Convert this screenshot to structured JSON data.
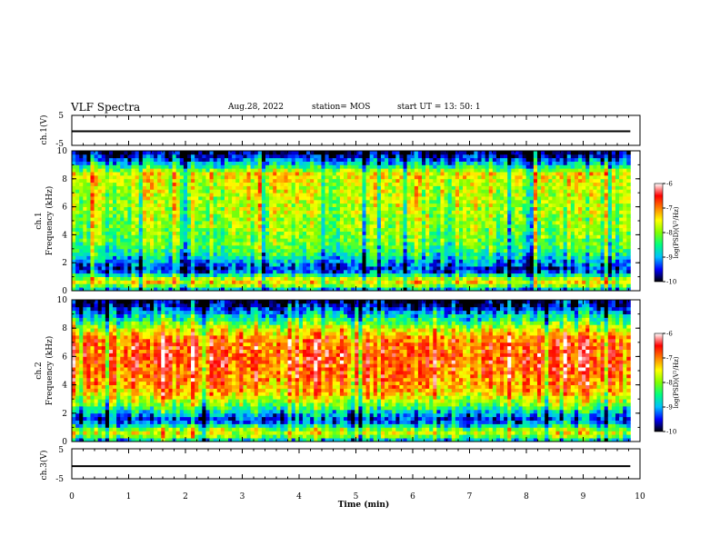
{
  "header": {
    "title": "VLF Spectra",
    "date": "Aug.28, 2022",
    "station": "station= MOS",
    "start_ut": "start  UT =   13: 50: 1"
  },
  "chart_data": {
    "type": "heatmap",
    "x": {
      "label": "Time  (min)",
      "range": [
        0,
        10
      ],
      "ticks": [
        0,
        1,
        2,
        3,
        4,
        5,
        6,
        7,
        8,
        9,
        10
      ],
      "data_end": 9.83
    },
    "panels": [
      {
        "id": "ch1-waveform",
        "type": "line",
        "ylabel": "ch.1(V)",
        "yrange": [
          -5,
          5
        ],
        "yticks": [
          5,
          -5
        ],
        "level": -0.3
      },
      {
        "id": "ch1-spectrogram",
        "type": "heatmap",
        "ylabel": "ch.1\nFrequency (kHz)",
        "ylabel_line1": "ch.1",
        "ylabel_line2": "Frequency (kHz)",
        "yrange": [
          0,
          10
        ],
        "yticks": [
          0,
          2,
          4,
          6,
          8,
          10
        ],
        "band_profile": [
          {
            "f": 0.0,
            "v": -9.3
          },
          {
            "f": 0.3,
            "v": -8.2
          },
          {
            "f": 0.7,
            "v": -7.3
          },
          {
            "f": 1.1,
            "v": -8.5
          },
          {
            "f": 1.5,
            "v": -9.6
          },
          {
            "f": 2.0,
            "v": -9.1
          },
          {
            "f": 2.5,
            "v": -8.6
          },
          {
            "f": 3.2,
            "v": -8.2
          },
          {
            "f": 4.5,
            "v": -8.0
          },
          {
            "f": 6.0,
            "v": -7.8
          },
          {
            "f": 7.5,
            "v": -7.7
          },
          {
            "f": 8.4,
            "v": -7.5
          },
          {
            "f": 8.8,
            "v": -8.3
          },
          {
            "f": 9.2,
            "v": -9.0
          },
          {
            "f": 9.6,
            "v": -9.6
          },
          {
            "f": 10.0,
            "v": -9.9
          }
        ]
      },
      {
        "id": "ch2-spectrogram",
        "type": "heatmap",
        "ylabel": "ch.2\nFrequency (kHz)",
        "ylabel_line1": "ch.2",
        "ylabel_line2": "Frequency (kHz)",
        "yrange": [
          0,
          10
        ],
        "yticks": [
          0,
          2,
          4,
          6,
          8,
          10
        ],
        "band_profile": [
          {
            "f": 0.0,
            "v": -9.2
          },
          {
            "f": 0.3,
            "v": -8.1
          },
          {
            "f": 0.7,
            "v": -7.5
          },
          {
            "f": 1.1,
            "v": -8.5
          },
          {
            "f": 1.5,
            "v": -9.5
          },
          {
            "f": 2.0,
            "v": -8.9
          },
          {
            "f": 2.6,
            "v": -8.0
          },
          {
            "f": 3.5,
            "v": -7.2
          },
          {
            "f": 4.5,
            "v": -6.9
          },
          {
            "f": 6.0,
            "v": -6.7
          },
          {
            "f": 7.2,
            "v": -6.9
          },
          {
            "f": 8.0,
            "v": -7.6
          },
          {
            "f": 8.6,
            "v": -8.4
          },
          {
            "f": 9.2,
            "v": -9.1
          },
          {
            "f": 9.6,
            "v": -9.6
          },
          {
            "f": 10.0,
            "v": -9.9
          }
        ]
      },
      {
        "id": "ch3-waveform",
        "type": "line",
        "ylabel": "ch.3(V)",
        "yrange": [
          -5,
          5
        ],
        "yticks": [
          5,
          -5
        ],
        "level": -0.8
      }
    ],
    "colorbar": {
      "label": "log(PSD)(V²/Hz)",
      "range": [
        -10,
        -6
      ],
      "ticks": [
        -6,
        -7,
        -8,
        -9,
        -10
      ],
      "colors": [
        "#000000",
        "#0000ff",
        "#00bfff",
        "#00ff80",
        "#80ff00",
        "#ffff00",
        "#ff8000",
        "#ff0000",
        "#ffffff"
      ]
    },
    "grid": false,
    "legend": "none"
  }
}
